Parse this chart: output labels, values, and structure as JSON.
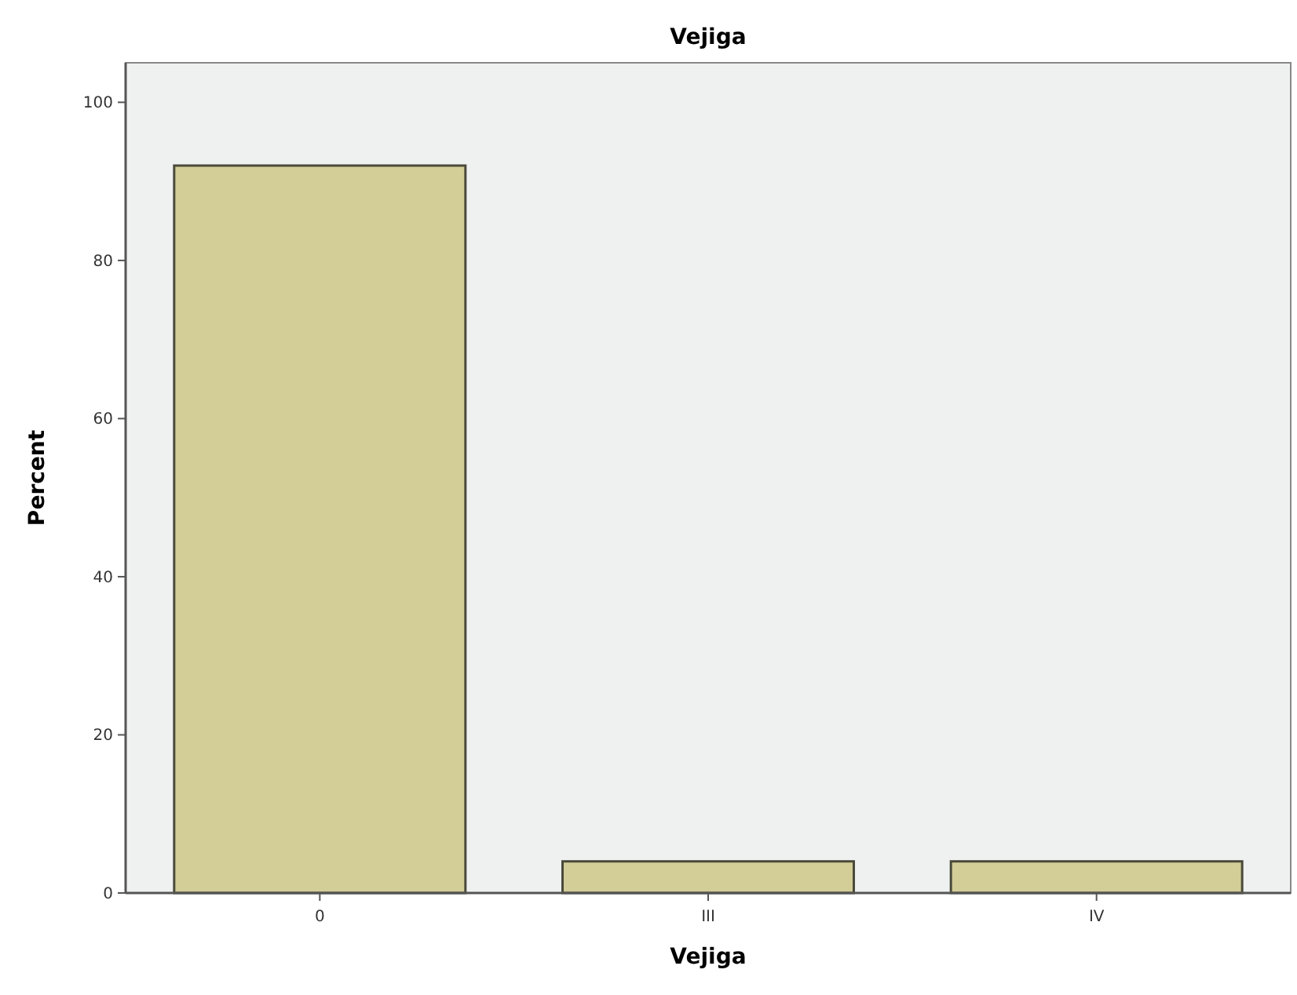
{
  "chart_data": {
    "type": "bar",
    "title": "Vejiga",
    "xlabel": "Vejiga",
    "ylabel": "Percent",
    "categories": [
      "0",
      "III",
      "IV"
    ],
    "values": [
      92,
      4,
      4
    ],
    "color": "#d3cd98",
    "ylim": [
      0,
      105
    ],
    "yticks": [
      0,
      20,
      40,
      60,
      80,
      100
    ],
    "grid": false
  }
}
